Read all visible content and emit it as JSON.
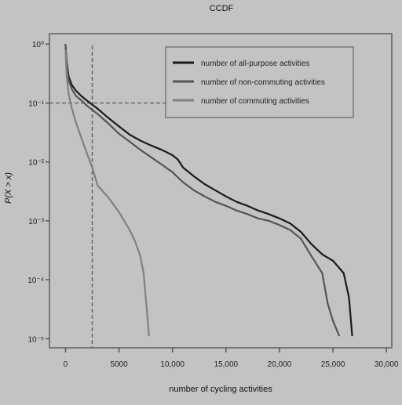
{
  "chart_data": {
    "type": "line",
    "title": "CCDF",
    "xlabel": "number of cycling activities",
    "ylabel": "P(X > x)",
    "x_scale": "linear",
    "y_scale": "log",
    "xlim": [
      -1500,
      30500
    ],
    "ylim": [
      7e-06,
      1.5
    ],
    "x_ticks": [
      0,
      5000,
      10000,
      15000,
      20000,
      25000,
      30000
    ],
    "x_tick_labels": [
      "0",
      "5000",
      "10,000",
      "15,000",
      "20,000",
      "25,000",
      "30,000"
    ],
    "y_ticks": [
      1,
      0.1,
      0.01,
      0.001,
      0.0001,
      1e-05
    ],
    "y_tick_labels": [
      "10⁰",
      "10⁻¹",
      "10⁻²",
      "10⁻³",
      "10⁻⁴",
      "10⁻⁵"
    ],
    "grid": false,
    "legend_position": "top-right",
    "reference_lines": {
      "x": 2500,
      "y": 0.1
    },
    "series": [
      {
        "name": "number of all-purpose activities",
        "color": "#1a1a1a",
        "points": [
          [
            0,
            1
          ],
          [
            100,
            0.5
          ],
          [
            300,
            0.28
          ],
          [
            600,
            0.2
          ],
          [
            1000,
            0.16
          ],
          [
            1500,
            0.13
          ],
          [
            2000,
            0.11
          ],
          [
            3000,
            0.08
          ],
          [
            4000,
            0.056
          ],
          [
            5000,
            0.04
          ],
          [
            6000,
            0.029
          ],
          [
            7000,
            0.023
          ],
          [
            8000,
            0.019
          ],
          [
            9000,
            0.016
          ],
          [
            10000,
            0.013
          ],
          [
            10500,
            0.011
          ],
          [
            11000,
            0.008
          ],
          [
            12000,
            0.0057
          ],
          [
            13000,
            0.0042
          ],
          [
            14000,
            0.0033
          ],
          [
            15000,
            0.0026
          ],
          [
            16000,
            0.0021
          ],
          [
            17000,
            0.0018
          ],
          [
            18000,
            0.0015
          ],
          [
            19000,
            0.0013
          ],
          [
            20000,
            0.0011
          ],
          [
            21000,
            0.0009
          ],
          [
            22000,
            0.00065
          ],
          [
            23000,
            0.0004
          ],
          [
            24000,
            0.00027
          ],
          [
            25000,
            0.00021
          ],
          [
            26000,
            0.00013
          ],
          [
            26500,
            5e-05
          ],
          [
            26800,
            1.1e-05
          ]
        ]
      },
      {
        "name": "number of non-commuting activities",
        "color": "#555555",
        "points": [
          [
            0,
            1
          ],
          [
            100,
            0.45
          ],
          [
            300,
            0.24
          ],
          [
            600,
            0.17
          ],
          [
            1000,
            0.13
          ],
          [
            1500,
            0.11
          ],
          [
            2000,
            0.09
          ],
          [
            3000,
            0.065
          ],
          [
            4000,
            0.045
          ],
          [
            5000,
            0.03
          ],
          [
            6000,
            0.022
          ],
          [
            7000,
            0.016
          ],
          [
            8000,
            0.012
          ],
          [
            9000,
            0.009
          ],
          [
            10000,
            0.0067
          ],
          [
            11000,
            0.0045
          ],
          [
            12000,
            0.0033
          ],
          [
            13000,
            0.0026
          ],
          [
            14000,
            0.0021
          ],
          [
            15000,
            0.0018
          ],
          [
            16000,
            0.0015
          ],
          [
            17000,
            0.0013
          ],
          [
            18000,
            0.0011
          ],
          [
            19000,
            0.001
          ],
          [
            20000,
            0.00085
          ],
          [
            21000,
            0.0007
          ],
          [
            22000,
            0.0005
          ],
          [
            23000,
            0.00025
          ],
          [
            24000,
            0.00013
          ],
          [
            24500,
            4e-05
          ],
          [
            25000,
            2e-05
          ],
          [
            25600,
            1.1e-05
          ]
        ]
      },
      {
        "name": "number of commuting activities",
        "color": "#808080",
        "points": [
          [
            0,
            0.8
          ],
          [
            100,
            0.3
          ],
          [
            300,
            0.14
          ],
          [
            600,
            0.08
          ],
          [
            1000,
            0.045
          ],
          [
            1500,
            0.025
          ],
          [
            2000,
            0.014
          ],
          [
            2500,
            0.008
          ],
          [
            3000,
            0.004
          ],
          [
            4000,
            0.0025
          ],
          [
            5000,
            0.0014
          ],
          [
            6000,
            0.0007
          ],
          [
            6500,
            0.00045
          ],
          [
            7000,
            0.00025
          ],
          [
            7300,
            0.00013
          ],
          [
            7500,
            5e-05
          ],
          [
            7700,
            2e-05
          ],
          [
            7800,
            1.1e-05
          ]
        ]
      }
    ]
  }
}
